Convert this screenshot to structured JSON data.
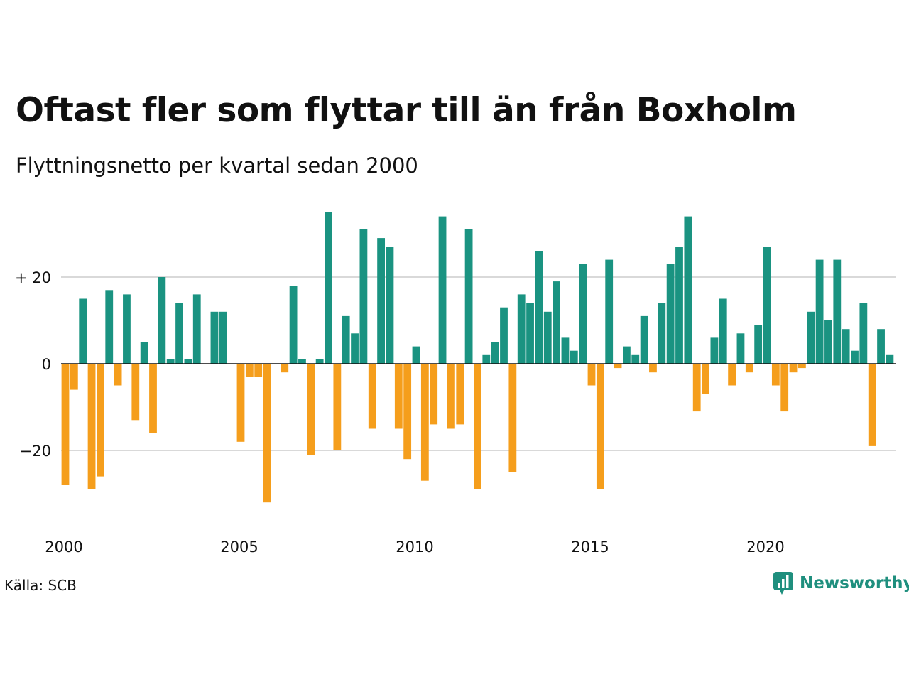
{
  "chart_data": {
    "type": "bar",
    "title": "Oftast fler som flyttar till än från Boxholm",
    "subtitle": "Flyttningsnetto per kvartal sedan 2000",
    "x": [
      2000.0,
      2000.25,
      2000.5,
      2000.75,
      2001.0,
      2001.25,
      2001.5,
      2001.75,
      2002.0,
      2002.25,
      2002.5,
      2002.75,
      2003.0,
      2003.25,
      2003.5,
      2003.75,
      2004.0,
      2004.25,
      2004.5,
      2004.75,
      2005.0,
      2005.25,
      2005.5,
      2005.75,
      2006.0,
      2006.25,
      2006.5,
      2006.75,
      2007.0,
      2007.25,
      2007.5,
      2007.75,
      2008.0,
      2008.25,
      2008.5,
      2008.75,
      2009.0,
      2009.25,
      2009.5,
      2009.75,
      2010.0,
      2010.25,
      2010.5,
      2010.75,
      2011.0,
      2011.25,
      2011.5,
      2011.75,
      2012.0,
      2012.25,
      2012.5,
      2012.75,
      2013.0,
      2013.25,
      2013.5,
      2013.75,
      2014.0,
      2014.25,
      2014.5,
      2014.75,
      2015.0,
      2015.25,
      2015.5,
      2015.75,
      2016.0,
      2016.25,
      2016.5,
      2016.75,
      2017.0,
      2017.25,
      2017.5,
      2017.75,
      2018.0,
      2018.25,
      2018.5,
      2018.75,
      2019.0,
      2019.25,
      2019.5,
      2019.75,
      2020.0,
      2020.25,
      2020.5,
      2020.75,
      2021.0,
      2021.25,
      2021.5,
      2021.75,
      2022.0,
      2022.25,
      2022.5,
      2022.75,
      2023.0,
      2023.25,
      2023.5
    ],
    "values": [
      -28,
      -6,
      15,
      -29,
      -26,
      17,
      -5,
      16,
      -13,
      5,
      -16,
      20,
      1,
      14,
      1,
      16,
      0,
      12,
      12,
      0,
      -18,
      -3,
      -3,
      -32,
      0,
      -2,
      18,
      1,
      -21,
      1,
      35,
      -20,
      11,
      7,
      31,
      -15,
      29,
      27,
      -15,
      -22,
      4,
      -27,
      -14,
      34,
      -15,
      -14,
      31,
      -29,
      2,
      5,
      13,
      -25,
      16,
      14,
      26,
      12,
      19,
      6,
      3,
      23,
      -5,
      -29,
      24,
      -1,
      4,
      2,
      11,
      -2,
      14,
      23,
      27,
      34,
      -11,
      -7,
      6,
      15,
      -5,
      7,
      -2,
      9,
      27,
      -5,
      -11,
      -2,
      -1,
      12,
      24,
      10,
      24,
      8,
      3,
      14,
      -19,
      8,
      2
    ],
    "ylim": [
      -35,
      35
    ],
    "yticks": [
      -20,
      0,
      20
    ],
    "ytick_labels": [
      "−20",
      "0",
      "+ 20"
    ],
    "xticks": [
      2000,
      2005,
      2010,
      2015,
      2020
    ],
    "xtick_labels": [
      "2000",
      "2005",
      "2010",
      "2015",
      "2020"
    ],
    "grid": true,
    "colors": {
      "positive": "#1a9381",
      "negative": "#f59e1c",
      "grid": "#d9d9d9",
      "zero": "#111111"
    }
  },
  "footer": {
    "source": "Källa: SCB",
    "brand": "Newsworthy"
  }
}
